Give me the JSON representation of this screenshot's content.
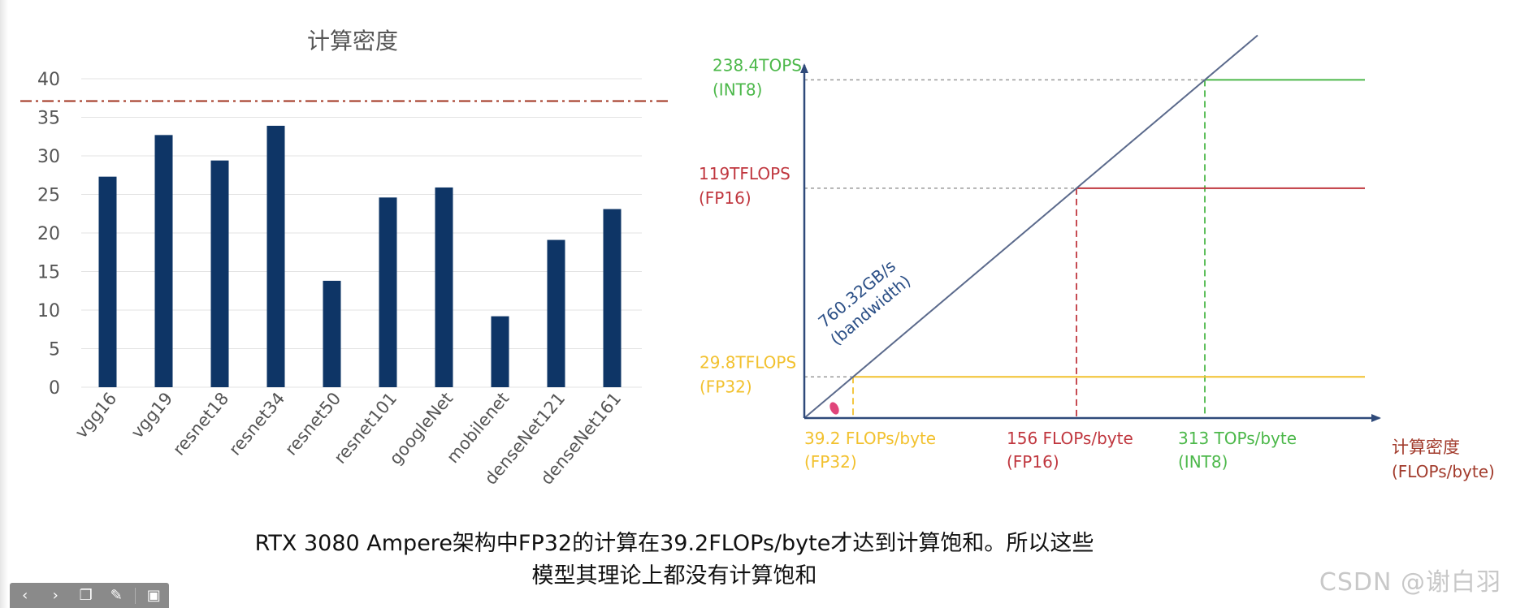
{
  "chart_data": [
    {
      "type": "bar",
      "title": "计算密度",
      "categories": [
        "vgg16",
        "vgg19",
        "resnet18",
        "resnet34",
        "resnet50",
        "resnet101",
        "googleNet",
        "mobilenet",
        "denseNet121",
        "denseNet161"
      ],
      "values": [
        27.3,
        32.7,
        29.4,
        33.9,
        13.8,
        24.6,
        25.9,
        9.2,
        19.1,
        23.1
      ],
      "ylim": [
        0,
        40
      ],
      "yticks": [
        0,
        5,
        10,
        15,
        20,
        25,
        30,
        35,
        40
      ],
      "reference_line": 37.1,
      "bar_color": "#0e3566",
      "reference_color": "#a0321e",
      "grid": true
    },
    {
      "type": "line",
      "x_axis_label_line1": "计算密度",
      "x_axis_label_line2": "(FLOPs/byte)",
      "slope_label_line1": "760.32GB/s",
      "slope_label_line2": "(bandwidth)",
      "roofs": [
        {
          "key": "fp32",
          "peak_line1": "29.8TFLOPS",
          "peak_line2": "(FP32)",
          "ridge_line1": "39.2 FLOPs/byte",
          "ridge_line2": "(FP32)",
          "ridge_x": 39.2,
          "peak": 29.8,
          "color": "#f2c12e"
        },
        {
          "key": "fp16",
          "peak_line1": "119TFLOPS",
          "peak_line2": "(FP16)",
          "ridge_line1": "156 FLOPs/byte",
          "ridge_line2": "(FP16)",
          "ridge_x": 156,
          "peak": 119,
          "color": "#c0373f"
        },
        {
          "key": "int8",
          "peak_line1": "238.4TOPS",
          "peak_line2": "(INT8)",
          "ridge_line1": "313 TOPs/byte",
          "ridge_line2": "(INT8)",
          "ridge_x": 313,
          "peak": 238.4,
          "color": "#4cb84a"
        }
      ],
      "axis_color": "#2f4a7a",
      "slope_color": "#5b6a8c"
    }
  ],
  "caption": {
    "line1": "RTX 3080 Ampere架构中FP32的计算在39.2FLOPs/byte才达到计算饱和。所以这些",
    "line2": "模型其理论上都没有计算饱和"
  },
  "watermark": "CSDN @谢白羽",
  "toolbar": {
    "prev_icon": "‹",
    "next_icon": "›",
    "copy_icon": "❐",
    "pen_icon": "✎",
    "screen_icon": "▣"
  }
}
